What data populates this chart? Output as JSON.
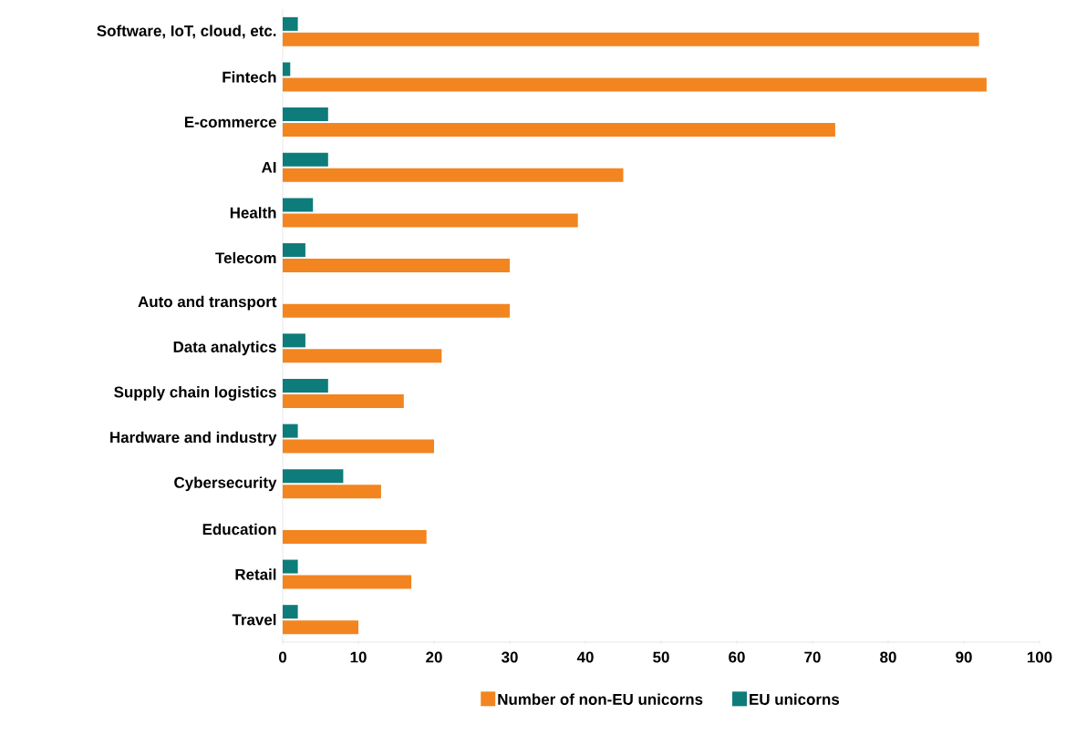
{
  "chart_data": {
    "type": "bar",
    "orientation": "horizontal",
    "categories": [
      "Software, IoT, cloud, etc.",
      "Fintech",
      "E-commerce",
      "AI",
      "Health",
      "Telecom",
      "Auto and transport",
      "Data analytics",
      "Supply chain logistics",
      "Hardware and industry",
      "Cybersecurity",
      "Education",
      "Retail",
      "Travel"
    ],
    "series": [
      {
        "name": "Number of non-EU unicorns",
        "color": "#f28520",
        "values": [
          92,
          93,
          73,
          45,
          39,
          30,
          30,
          21,
          16,
          20,
          13,
          19,
          17,
          10
        ]
      },
      {
        "name": "EU unicorns",
        "color": "#0e7c7b",
        "values": [
          2,
          1,
          6,
          6,
          4,
          3,
          0,
          3,
          6,
          2,
          8,
          0,
          2,
          2
        ]
      }
    ],
    "xlim": [
      0,
      100
    ],
    "xticks": [
      0,
      10,
      20,
      30,
      40,
      50,
      60,
      70,
      80,
      90,
      100
    ],
    "legend": "bottom"
  }
}
